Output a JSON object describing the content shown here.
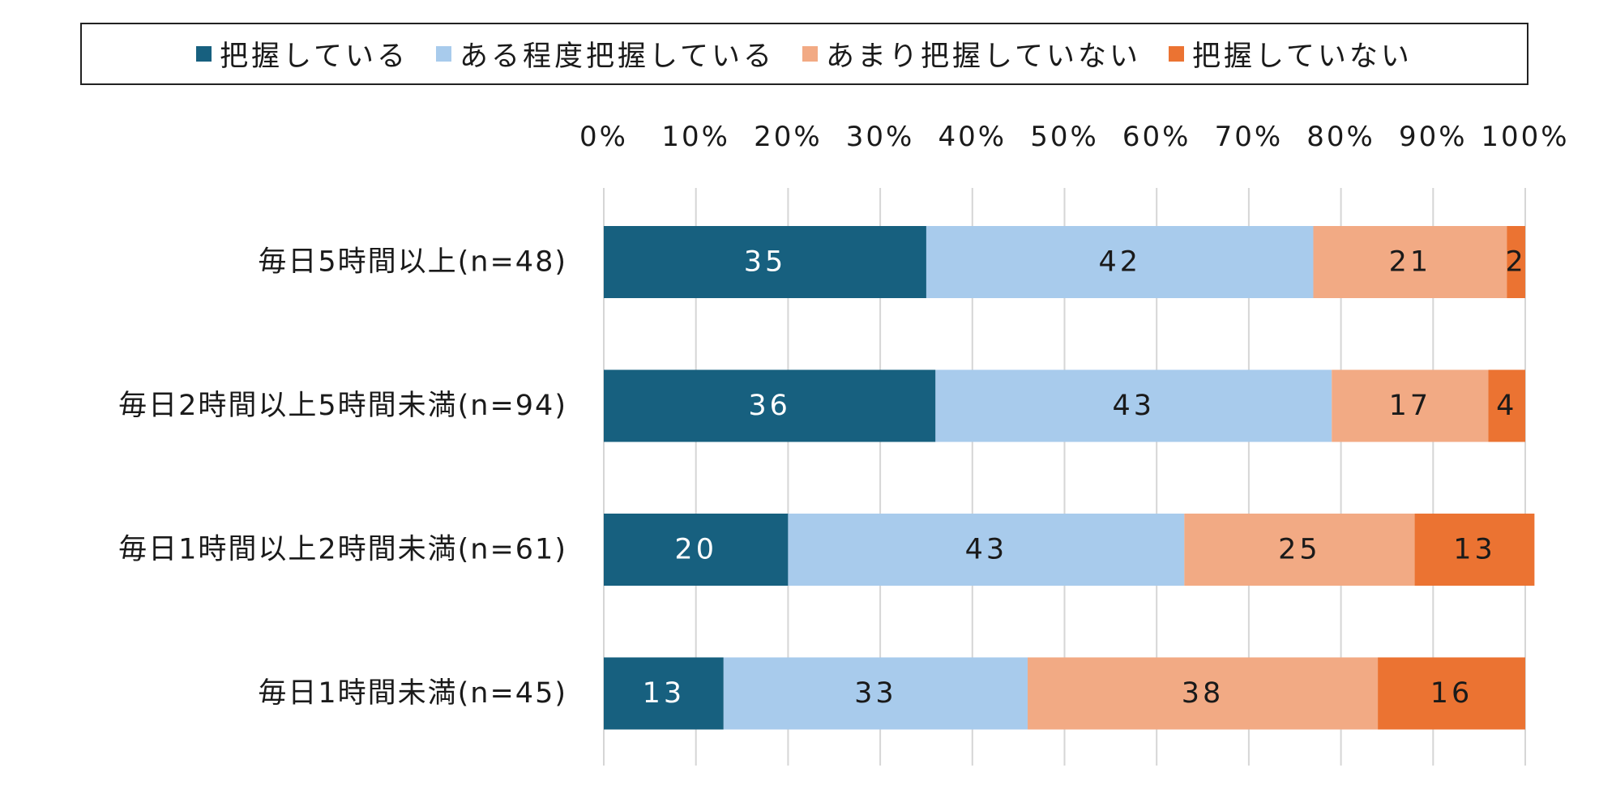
{
  "chart_data": {
    "type": "bar",
    "orientation": "horizontal",
    "stacked": true,
    "title": "",
    "xlabel": "",
    "ylabel": "",
    "xlim": [
      0,
      100
    ],
    "x_ticks": [
      "0%",
      "10%",
      "20%",
      "30%",
      "40%",
      "50%",
      "60%",
      "70%",
      "80%",
      "90%",
      "100%"
    ],
    "x_tick_position": "top",
    "grid": true,
    "legend_position": "top",
    "categories": [
      "毎日5時間以上(n=48)",
      "毎日2時間以上5時間未満(n=94)",
      "毎日1時間以上2時間未満(n=61)",
      "毎日1時間未満(n=45)"
    ],
    "series": [
      {
        "name": "把握している",
        "color": "#17607f",
        "label_color": "#ffffff",
        "values": [
          35,
          36,
          20,
          13
        ]
      },
      {
        "name": "ある程度把握している",
        "color": "#a8cbec",
        "label_color": "#1a1a1a",
        "values": [
          42,
          43,
          43,
          33
        ]
      },
      {
        "name": "あまり把握していない",
        "color": "#f2aa84",
        "label_color": "#1a1a1a",
        "values": [
          21,
          17,
          25,
          38
        ]
      },
      {
        "name": "把握していない",
        "color": "#eb7332",
        "label_color": "#1a1a1a",
        "values": [
          2,
          4,
          13,
          16
        ]
      }
    ]
  }
}
